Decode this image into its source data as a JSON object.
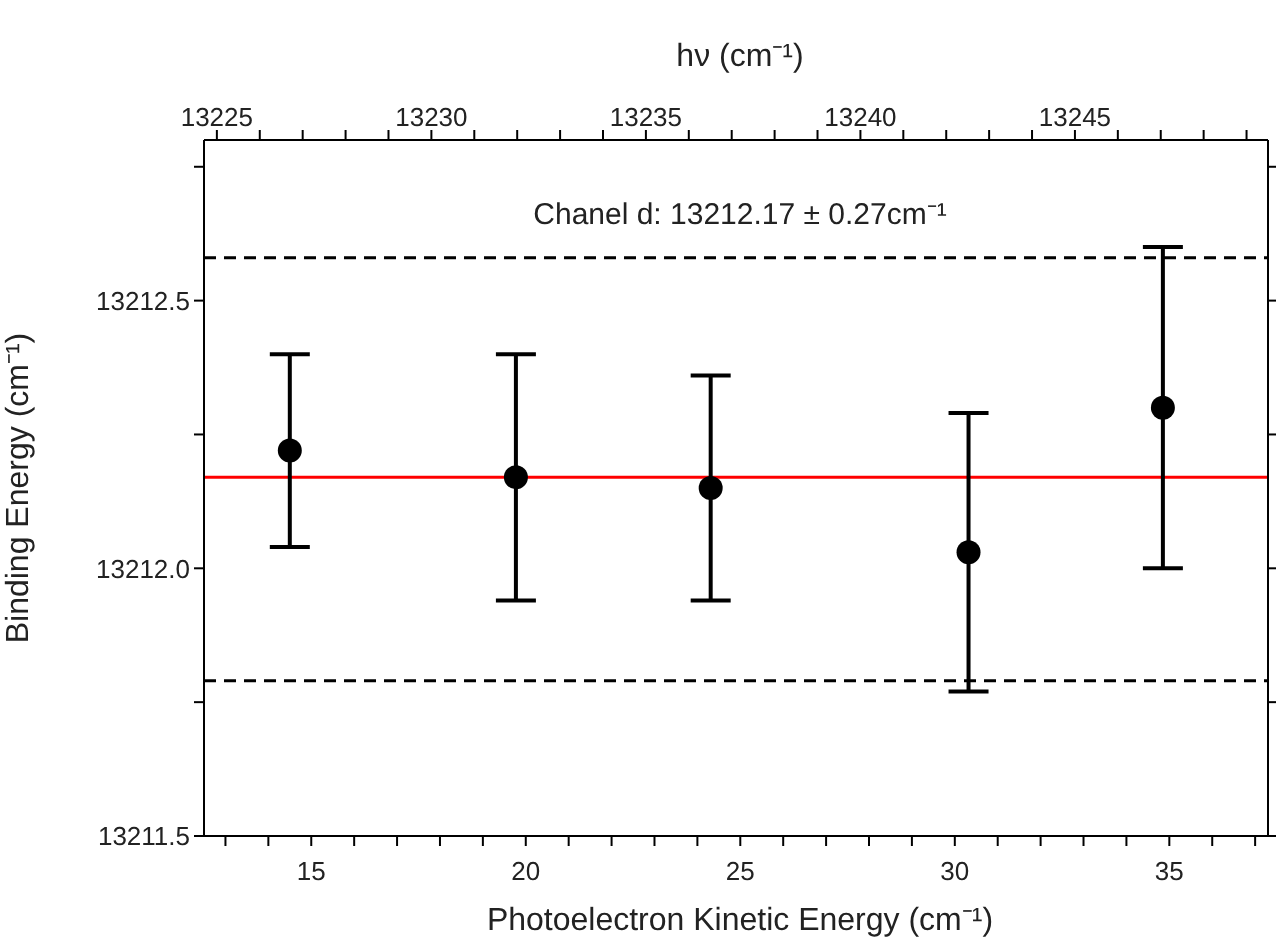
{
  "chart_data": {
    "type": "scatter",
    "xlabel": "Photoelectron Kinetic Energy (cm⁻¹)",
    "ylabel": "Binding Energy (cm⁻¹)",
    "x2label": "hν (cm⁻¹)",
    "annotations": [
      "Chanel d: 13212.17 ± 0.27cm⁻¹"
    ],
    "x": [
      14.5,
      19.77,
      24.31,
      30.32,
      34.85
    ],
    "series": [
      {
        "color": "#000000",
        "values": [
          13212.22,
          13212.17,
          13212.15,
          13212.03,
          13212.3
        ],
        "errors": [
          0.18,
          0.23,
          0.21,
          0.26,
          0.3
        ]
      }
    ],
    "marker": "circle",
    "xlim": [
      12.5,
      37.3
    ],
    "xticks": [
      {
        "value": 13,
        "label": null
      },
      {
        "value": 14,
        "label": null
      },
      15,
      {
        "value": 16,
        "label": null
      },
      {
        "value": 17,
        "label": null
      },
      {
        "value": 18,
        "label": null
      },
      {
        "value": 19,
        "label": null
      },
      20,
      {
        "value": 21,
        "label": null
      },
      {
        "value": 22,
        "label": null
      },
      {
        "value": 23,
        "label": null
      },
      {
        "value": 24,
        "label": null
      },
      25,
      {
        "value": 26,
        "label": null
      },
      {
        "value": 27,
        "label": null
      },
      {
        "value": 28,
        "label": null
      },
      {
        "value": 29,
        "label": null
      },
      30,
      {
        "value": 31,
        "label": null
      },
      {
        "value": 32,
        "label": null
      },
      {
        "value": 33,
        "label": null
      },
      {
        "value": 34,
        "label": null
      },
      35,
      {
        "value": 36,
        "label": null
      },
      {
        "value": 37,
        "label": null
      }
    ],
    "x2lim": [
      13224.7,
      13249.5
    ],
    "x2ticks": [
      13225,
      {
        "value": 13226,
        "label": null
      },
      {
        "value": 13227,
        "label": null
      },
      {
        "value": 13228,
        "label": null
      },
      {
        "value": 13229,
        "label": null
      },
      13230,
      {
        "value": 13231,
        "label": null
      },
      {
        "value": 13232,
        "label": null
      },
      {
        "value": 13233,
        "label": null
      },
      {
        "value": 13234,
        "label": null
      },
      13235,
      {
        "value": 13236,
        "label": null
      },
      {
        "value": 13237,
        "label": null
      },
      {
        "value": 13238,
        "label": null
      },
      {
        "value": 13239,
        "label": null
      },
      13240,
      {
        "value": 13241,
        "label": null
      },
      {
        "value": 13242,
        "label": null
      },
      {
        "value": 13243,
        "label": null
      },
      {
        "value": 13244,
        "label": null
      },
      13245,
      {
        "value": 13246,
        "label": null
      },
      {
        "value": 13247,
        "label": null
      },
      {
        "value": 13248,
        "label": null
      },
      {
        "value": 13249,
        "label": null
      }
    ],
    "ylim": [
      13211.5,
      13212.8
    ],
    "yticks": [
      {
        "value": 13211.5,
        "label": "13211.5"
      },
      {
        "value": 13211.75,
        "label": null
      },
      {
        "value": 13212,
        "label": "13212.0"
      },
      {
        "value": 13212.25,
        "label": null
      },
      {
        "value": 13212.5,
        "label": "13212.5"
      },
      {
        "value": 13212.75,
        "label": null
      }
    ],
    "ref_lines": [
      {
        "axis": "y",
        "value": 13212.17,
        "color": "#ff0000",
        "line_style": "solid"
      },
      {
        "axis": "y",
        "value": 13212.58,
        "color": "#000000",
        "line_style": "dashed"
      },
      {
        "axis": "y",
        "value": 13211.79,
        "color": "#000000",
        "line_style": "dashed"
      }
    ],
    "grid": false,
    "legend": false
  }
}
